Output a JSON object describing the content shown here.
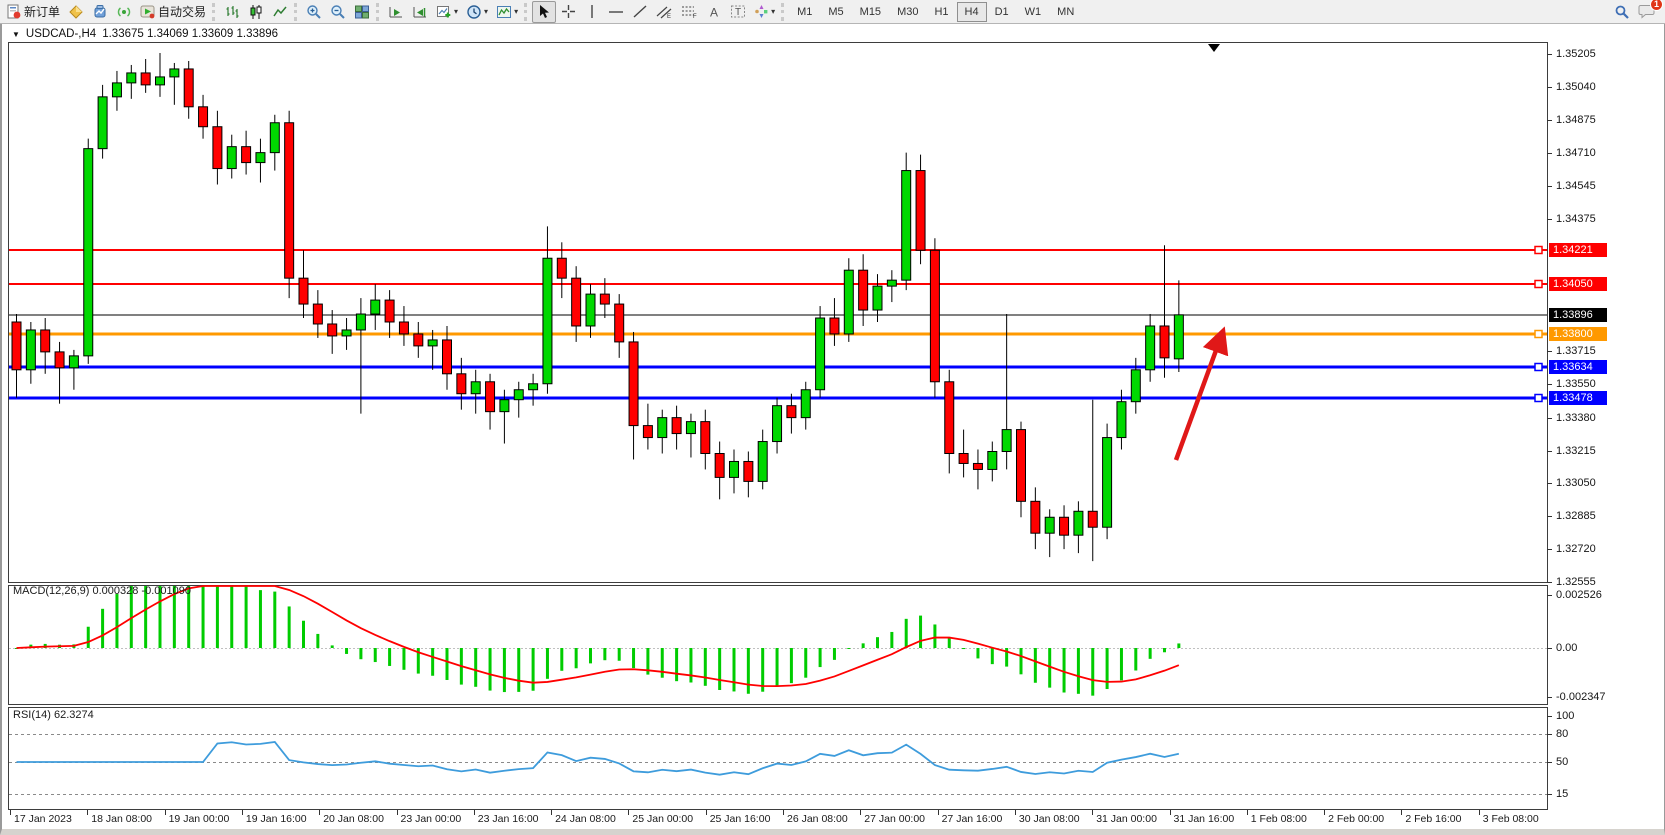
{
  "toolbar": {
    "new_order_label": "新订单",
    "auto_trading_label": "自动交易",
    "timeframes": [
      "M1",
      "M5",
      "M15",
      "M30",
      "H1",
      "H4",
      "D1",
      "W1",
      "MN"
    ],
    "active_timeframe": "H4",
    "notification_count": "1"
  },
  "chart": {
    "title_symbol": "USDCAD-,H4",
    "title_ohlc": "1.33675 1.34069 1.33609 1.33896"
  },
  "chart_data": {
    "type": "candlestick",
    "symbol": "USDCAD",
    "period": "H4",
    "current_bar": {
      "open": 1.33675,
      "high": 1.34069,
      "low": 1.33609,
      "close": 1.33896
    },
    "colors": {
      "bull": "#00d800",
      "bear": "#ff0000",
      "wick": "#000000",
      "macd_hist": "#00cc00",
      "macd_signal": "#ff0000",
      "rsi_line": "#3e9cdc",
      "arrow": "#e01818"
    },
    "y_axis_ticks": [
      "1.35205",
      "1.35040",
      "1.34875",
      "1.34710",
      "1.34545",
      "1.34375",
      "1.33715",
      "1.33550",
      "1.33380",
      "1.33215",
      "1.33050",
      "1.32885",
      "1.32720",
      "1.32555"
    ],
    "x_labels": [
      "17 Jan 2023",
      "18 Jan 08:00",
      "19 Jan 00:00",
      "19 Jan 16:00",
      "20 Jan 08:00",
      "23 Jan 00:00",
      "23 Jan 16:00",
      "24 Jan 08:00",
      "25 Jan 00:00",
      "25 Jan 16:00",
      "26 Jan 08:00",
      "27 Jan 00:00",
      "27 Jan 16:00",
      "30 Jan 08:00",
      "31 Jan 00:00",
      "31 Jan 16:00",
      "1 Feb 08:00",
      "2 Feb 00:00",
      "2 Feb 16:00",
      "3 Feb 08:00"
    ],
    "levels": [
      {
        "price": 1.34221,
        "label": "1.34221",
        "color": "#ff0000",
        "width": 2,
        "marker": true
      },
      {
        "price": 1.3405,
        "label": "1.34050",
        "color": "#ff0000",
        "width": 2,
        "marker": true
      },
      {
        "price": 1.33896,
        "label": "1.33896",
        "color": "#000000",
        "width": 1,
        "marker": false
      },
      {
        "price": 1.338,
        "label": "1.33800",
        "color": "#ff9900",
        "width": 3,
        "marker": true
      },
      {
        "price": 1.33634,
        "label": "1.33634",
        "color": "#0000ff",
        "width": 3,
        "marker": true
      },
      {
        "price": 1.33478,
        "label": "1.33478",
        "color": "#0000ff",
        "width": 3,
        "marker": true
      }
    ],
    "candles": [
      [
        1.3386,
        1.339,
        1.3348,
        1.3362
      ],
      [
        1.3362,
        1.3386,
        1.3355,
        1.3382
      ],
      [
        1.3382,
        1.3388,
        1.336,
        1.3371
      ],
      [
        1.3371,
        1.3376,
        1.3345,
        1.3363
      ],
      [
        1.3363,
        1.3372,
        1.3352,
        1.3369
      ],
      [
        1.3369,
        1.3478,
        1.3365,
        1.3473
      ],
      [
        1.3473,
        1.3505,
        1.3468,
        1.3499
      ],
      [
        1.3499,
        1.3512,
        1.3492,
        1.3506
      ],
      [
        1.3506,
        1.3515,
        1.3498,
        1.3511
      ],
      [
        1.3511,
        1.3518,
        1.3501,
        1.3505
      ],
      [
        1.3505,
        1.3521,
        1.3499,
        1.3509
      ],
      [
        1.3509,
        1.3516,
        1.3495,
        1.3513
      ],
      [
        1.3513,
        1.3517,
        1.3488,
        1.3494
      ],
      [
        1.3494,
        1.35,
        1.3478,
        1.3484
      ],
      [
        1.3484,
        1.3492,
        1.3455,
        1.3463
      ],
      [
        1.3463,
        1.348,
        1.3458,
        1.3474
      ],
      [
        1.3474,
        1.3482,
        1.346,
        1.3466
      ],
      [
        1.3466,
        1.3478,
        1.3456,
        1.3471
      ],
      [
        1.3471,
        1.349,
        1.3462,
        1.3486
      ],
      [
        1.3486,
        1.3492,
        1.3398,
        1.3408
      ],
      [
        1.3408,
        1.3422,
        1.3388,
        1.3395
      ],
      [
        1.3395,
        1.3402,
        1.3378,
        1.3385
      ],
      [
        1.3385,
        1.3392,
        1.337,
        1.3379
      ],
      [
        1.3379,
        1.3388,
        1.3372,
        1.3382
      ],
      [
        1.3382,
        1.3398,
        1.334,
        1.339
      ],
      [
        1.339,
        1.3405,
        1.3382,
        1.3397
      ],
      [
        1.3397,
        1.3402,
        1.3378,
        1.3386
      ],
      [
        1.3386,
        1.3394,
        1.3374,
        1.338
      ],
      [
        1.338,
        1.3386,
        1.3368,
        1.3374
      ],
      [
        1.3374,
        1.3382,
        1.3362,
        1.3377
      ],
      [
        1.3377,
        1.3384,
        1.3352,
        1.336
      ],
      [
        1.336,
        1.3368,
        1.3342,
        1.335
      ],
      [
        1.335,
        1.3362,
        1.334,
        1.3356
      ],
      [
        1.3356,
        1.336,
        1.3332,
        1.3341
      ],
      [
        1.3341,
        1.3352,
        1.3325,
        1.3347
      ],
      [
        1.3347,
        1.3356,
        1.3338,
        1.3352
      ],
      [
        1.3352,
        1.336,
        1.3344,
        1.3355
      ],
      [
        1.3355,
        1.3434,
        1.335,
        1.3418
      ],
      [
        1.3418,
        1.3426,
        1.3398,
        1.3408
      ],
      [
        1.3408,
        1.3414,
        1.3376,
        1.3384
      ],
      [
        1.3384,
        1.3405,
        1.3378,
        1.34
      ],
      [
        1.34,
        1.3408,
        1.3388,
        1.3395
      ],
      [
        1.3395,
        1.34,
        1.3368,
        1.3376
      ],
      [
        1.3376,
        1.3381,
        1.3317,
        1.3334
      ],
      [
        1.3334,
        1.3345,
        1.3322,
        1.3328
      ],
      [
        1.3328,
        1.3342,
        1.332,
        1.3338
      ],
      [
        1.3338,
        1.3344,
        1.3322,
        1.333
      ],
      [
        1.333,
        1.334,
        1.3318,
        1.3336
      ],
      [
        1.3336,
        1.3342,
        1.3312,
        1.332
      ],
      [
        1.332,
        1.3326,
        1.3297,
        1.3308
      ],
      [
        1.3308,
        1.3322,
        1.33,
        1.3316
      ],
      [
        1.3316,
        1.3321,
        1.3298,
        1.3306
      ],
      [
        1.3306,
        1.3332,
        1.3302,
        1.3326
      ],
      [
        1.3326,
        1.3348,
        1.332,
        1.3344
      ],
      [
        1.3344,
        1.335,
        1.333,
        1.3338
      ],
      [
        1.3338,
        1.3356,
        1.3332,
        1.3352
      ],
      [
        1.3352,
        1.3394,
        1.3348,
        1.3388
      ],
      [
        1.3388,
        1.3398,
        1.3374,
        1.338
      ],
      [
        1.338,
        1.3418,
        1.3376,
        1.3412
      ],
      [
        1.3412,
        1.342,
        1.3384,
        1.3392
      ],
      [
        1.3392,
        1.341,
        1.3386,
        1.3404
      ],
      [
        1.3404,
        1.3412,
        1.3396,
        1.3407
      ],
      [
        1.3407,
        1.3471,
        1.3402,
        1.3462
      ],
      [
        1.3462,
        1.347,
        1.3415,
        1.3422
      ],
      [
        1.3422,
        1.3428,
        1.3348,
        1.3356
      ],
      [
        1.3356,
        1.3362,
        1.331,
        1.332
      ],
      [
        1.332,
        1.3332,
        1.3308,
        1.3315
      ],
      [
        1.3315,
        1.3322,
        1.3302,
        1.3312
      ],
      [
        1.3312,
        1.3326,
        1.3306,
        1.3321
      ],
      [
        1.3321,
        1.339,
        1.3312,
        1.3332
      ],
      [
        1.3332,
        1.3336,
        1.3288,
        1.3296
      ],
      [
        1.3296,
        1.3303,
        1.3272,
        1.328
      ],
      [
        1.328,
        1.3292,
        1.3268,
        1.3288
      ],
      [
        1.3288,
        1.3294,
        1.3272,
        1.3279
      ],
      [
        1.3279,
        1.3296,
        1.327,
        1.3291
      ],
      [
        1.3291,
        1.3347,
        1.3266,
        1.3283
      ],
      [
        1.3283,
        1.3335,
        1.3277,
        1.3328
      ],
      [
        1.3328,
        1.3352,
        1.3322,
        1.3346
      ],
      [
        1.3346,
        1.3368,
        1.334,
        1.3362
      ],
      [
        1.3362,
        1.339,
        1.3356,
        1.3384
      ],
      [
        1.3384,
        1.34245,
        1.3358,
        1.3368
      ],
      [
        1.33675,
        1.34069,
        1.33609,
        1.33896
      ]
    ],
    "macd": {
      "label": "MACD(12,26,9)",
      "values": "0.000328 -0.001090",
      "params": [
        12,
        26,
        9
      ],
      "main_value": 0.000328,
      "signal_value": -0.00109,
      "axis_labels": [
        "0.002526",
        "0.00",
        "-0.002347"
      ],
      "axis_values": [
        0.002526,
        0,
        -0.002347
      ]
    },
    "rsi": {
      "label": "RSI(14)",
      "value": "62.3274",
      "period": 14,
      "axis_labels": [
        "100",
        "80",
        "50",
        "15"
      ],
      "axis_values": [
        100,
        80,
        50,
        15
      ],
      "dashed_levels": [
        80,
        50,
        15
      ]
    },
    "annotation_arrow": {
      "from": [
        1176,
        460
      ],
      "to": [
        1222,
        334
      ]
    }
  }
}
